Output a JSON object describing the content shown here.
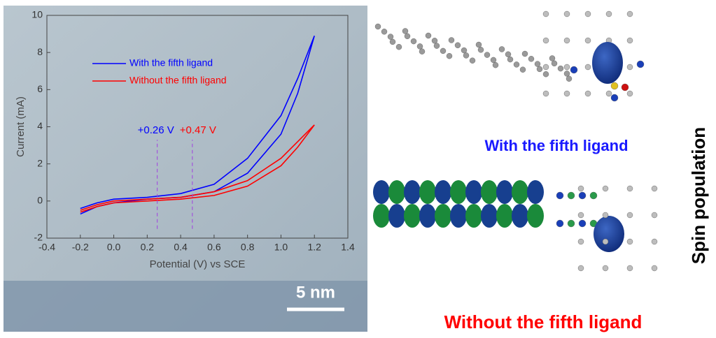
{
  "chart_data": {
    "type": "line",
    "xlabel": "Potential (V) vs SCE",
    "ylabel": "Current (mA)",
    "xlim": [
      -0.4,
      1.4
    ],
    "xticks": [
      -0.4,
      -0.2,
      {
        "value": 0,
        "label": "0.0"
      },
      0.2,
      0.4,
      0.6,
      0.8,
      {
        "value": 1,
        "label": "1.0"
      },
      1.2,
      1.4
    ],
    "ylim": [
      -2,
      10
    ],
    "yticks": [
      -2,
      0,
      2,
      4,
      6,
      8,
      10
    ],
    "x": [
      -0.2,
      -0.1,
      0,
      0.2,
      0.4,
      0.6,
      0.8,
      1.0,
      1.1,
      1.2,
      1.1,
      1.0,
      0.8,
      0.6,
      0.4,
      0.2,
      0,
      -0.1,
      -0.2
    ],
    "series": [
      {
        "name": "With the fifth ligand",
        "color": "#0000ff",
        "values": [
          -0.7,
          -0.3,
          -0.1,
          0.1,
          0.2,
          0.5,
          1.5,
          3.6,
          5.8,
          8.9,
          6.6,
          4.6,
          2.3,
          0.9,
          0.4,
          0.2,
          0.1,
          -0.1,
          -0.4
        ]
      },
      {
        "name": "Without the fifth ligand",
        "color": "#ff0000",
        "values": [
          -0.6,
          -0.3,
          -0.1,
          0.0,
          0.1,
          0.3,
          0.8,
          1.9,
          2.9,
          4.1,
          3.2,
          2.3,
          1.1,
          0.5,
          0.2,
          0.1,
          0.0,
          -0.2,
          -0.5
        ]
      }
    ],
    "annotations": [
      {
        "text": "+0.26 V",
        "x": 0.26,
        "color": "#0000ff"
      },
      {
        "text": "+0.47 V",
        "x": 0.47,
        "color": "#ff0000"
      }
    ]
  },
  "labels": {
    "scale_bar": "5 nm",
    "top_molecule": "With the fifth ligand",
    "bottom_molecule": "Without the fifth ligand",
    "side": "Spin population"
  }
}
